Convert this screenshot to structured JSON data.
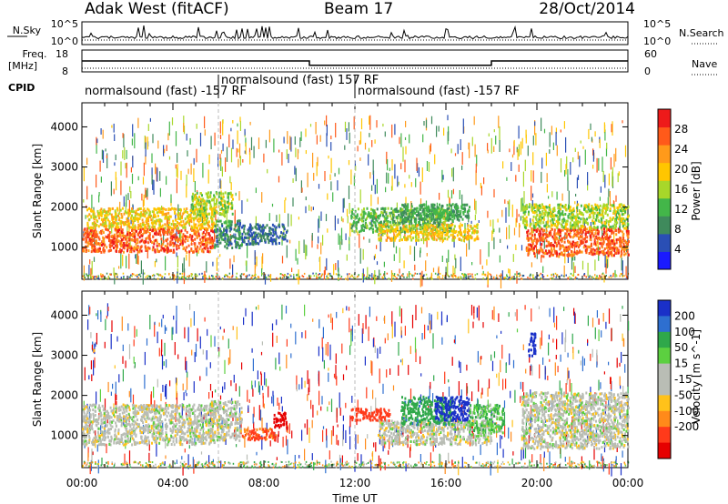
{
  "header": {
    "station": "Adak West (fitACF)",
    "beam": "Beam 17",
    "date": "28/Oct/2014"
  },
  "top_panels": {
    "nsky_label": "N.Sky",
    "nsky_ticks": [
      "10^5",
      "10^0"
    ],
    "nsearch_label": "N.Search",
    "nsearch_ticks": [
      "10^5",
      "10^0"
    ],
    "freq_label": "Freq.",
    "freq_unit": "[MHz]",
    "freq_ticks": [
      "18",
      "8"
    ],
    "nave_label": "Nave",
    "nave_ticks": [
      "60",
      "0"
    ],
    "cpid_label": "CPID",
    "cpid_segments": [
      {
        "text": "normalsound (fast) -157 RF",
        "start_ut": 0,
        "end_ut": 6
      },
      {
        "text": "normalsound (fast) 157 RF",
        "start_ut": 6,
        "end_ut": 12
      },
      {
        "text": "normalsound (fast) -157 RF",
        "start_ut": 12,
        "end_ut": 24
      }
    ]
  },
  "axes": {
    "ylabel": "Slant Range [km]",
    "xlabel": "Time UT",
    "y_ticks": [
      "1000",
      "2000",
      "3000",
      "4000"
    ],
    "x_ticks": [
      "00:00",
      "04:00",
      "08:00",
      "12:00",
      "16:00",
      "20:00",
      "00:00"
    ]
  },
  "power_scale": {
    "label": "Power [dB]",
    "ticks": [
      "4",
      "8",
      "12",
      "16",
      "20",
      "24",
      "28"
    ],
    "colors": [
      "#1a1aff",
      "#2a4fb5",
      "#3f8a5c",
      "#43b649",
      "#a8d72a",
      "#ffc600",
      "#ff9a1a",
      "#ff5a1a",
      "#ee1a1a"
    ]
  },
  "velocity_scale": {
    "label": "Velocity [m s^-1]",
    "ticks": [
      "200",
      "100",
      "50",
      "15",
      "-15",
      "-50",
      "-100",
      "-200"
    ],
    "colors": [
      "#1a30c8",
      "#2e6fd0",
      "#2fa84a",
      "#5cd040",
      "#b9bdb5",
      "#b9bdb5",
      "#ffc21a",
      "#ff8a1a",
      "#ff3a1a",
      "#e60000"
    ]
  },
  "chart_data": {
    "type": "heatmap",
    "title": "Adak West (fitACF)  Beam 17  28/Oct/2014",
    "xlabel": "Time UT",
    "ylabel": "Slant Range [km]",
    "xlim": [
      0,
      24
    ],
    "ylim": [
      200,
      4600
    ],
    "frequency_mhz": [
      {
        "from_ut": 0,
        "to_ut": 10,
        "value": 13
      },
      {
        "from_ut": 10,
        "to_ut": 18,
        "value": 11
      },
      {
        "from_ut": 18,
        "to_ut": 24,
        "value": 13
      }
    ],
    "nave_approx": 5,
    "power_regions": [
      {
        "t0": 0.0,
        "t1": 5.8,
        "r0": 900,
        "r1": 1500,
        "level": 28
      },
      {
        "t0": 0.2,
        "t1": 5.8,
        "r0": 1500,
        "r1": 2000,
        "level": 20
      },
      {
        "t0": 4.8,
        "t1": 6.6,
        "r0": 1800,
        "r1": 2400,
        "level": 16
      },
      {
        "t0": 5.8,
        "t1": 7.0,
        "r0": 1000,
        "r1": 1700,
        "level": 8
      },
      {
        "t0": 7.0,
        "t1": 9.0,
        "r0": 1100,
        "r1": 1600,
        "level": 6
      },
      {
        "t0": 11.8,
        "t1": 16.3,
        "r0": 1400,
        "r1": 2000,
        "level": 12
      },
      {
        "t0": 13.0,
        "t1": 17.4,
        "r0": 1200,
        "r1": 1600,
        "level": 20
      },
      {
        "t0": 14.0,
        "t1": 17.0,
        "r0": 1700,
        "r1": 2100,
        "level": 10
      },
      {
        "t0": 19.5,
        "t1": 24.0,
        "r0": 800,
        "r1": 1500,
        "level": 28
      },
      {
        "t0": 19.3,
        "t1": 24.0,
        "r0": 1500,
        "r1": 2100,
        "level": 16
      }
    ],
    "velocity_regions": [
      {
        "t0": 0.0,
        "t1": 5.8,
        "r0": 800,
        "r1": 1800,
        "level": 0
      },
      {
        "t0": 5.6,
        "t1": 7.0,
        "r0": 900,
        "r1": 1900,
        "level": 0
      },
      {
        "t0": 7.0,
        "t1": 8.5,
        "r0": 900,
        "r1": 1200,
        "level": -80
      },
      {
        "t0": 8.4,
        "t1": 9.0,
        "r0": 1200,
        "r1": 1600,
        "level": -220
      },
      {
        "t0": 11.8,
        "t1": 13.5,
        "r0": 1400,
        "r1": 1700,
        "level": -100
      },
      {
        "t0": 13.0,
        "t1": 18.0,
        "r0": 800,
        "r1": 1400,
        "level": 0
      },
      {
        "t0": 14.0,
        "t1": 16.3,
        "r0": 1300,
        "r1": 2000,
        "level": 60
      },
      {
        "t0": 15.5,
        "t1": 17.0,
        "r0": 1400,
        "r1": 2000,
        "level": 200
      },
      {
        "t0": 17.0,
        "t1": 18.5,
        "r0": 1100,
        "r1": 1800,
        "level": 30
      },
      {
        "t0": 19.3,
        "t1": 24.0,
        "r0": 700,
        "r1": 2100,
        "level": 0
      },
      {
        "t0": 19.6,
        "t1": 19.9,
        "r0": 3000,
        "r1": 3600,
        "level": 200
      }
    ]
  }
}
